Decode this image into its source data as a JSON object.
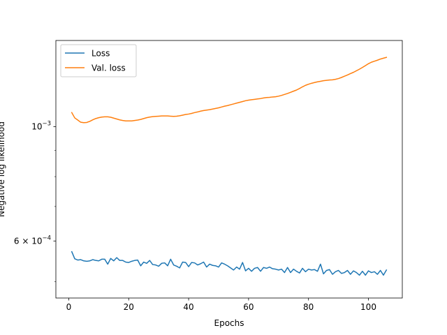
{
  "chart_data": {
    "type": "line",
    "title": "",
    "xlabel": "Epochs",
    "ylabel": "Negative log likelihood",
    "xlim": [
      -4.3,
      111.3
    ],
    "ylim": [
      0.000465,
      0.00147
    ],
    "yscale": "log",
    "grid": false,
    "legend": "top-left",
    "x_ticks": [
      {
        "value": 0,
        "label": "0"
      },
      {
        "value": 20,
        "label": "20"
      },
      {
        "value": 40,
        "label": "40"
      },
      {
        "value": 60,
        "label": "60"
      },
      {
        "value": 80,
        "label": "80"
      },
      {
        "value": 100,
        "label": "100"
      }
    ],
    "y_ticks": [
      {
        "value": 0.001,
        "label": "10−3",
        "base": "10",
        "exp": "−3",
        "coef": ""
      },
      {
        "value": 0.0006,
        "label": "6 × 10−4",
        "base": "10",
        "exp": "−4",
        "coef": "6 × "
      }
    ],
    "y_minor_ticks": [
      0.0005,
      0.0007,
      0.0008,
      0.0009
    ],
    "x_start": 1,
    "x_step": 1,
    "series": [
      {
        "name": "Loss",
        "color": "#1f77b4",
        "values": [
          0.000572,
          0.000554,
          0.000551,
          0.000552,
          0.000549,
          0.000548,
          0.000549,
          0.000552,
          0.00055,
          0.000549,
          0.000553,
          0.000553,
          0.000541,
          0.000555,
          0.000549,
          0.000557,
          0.00055,
          0.00055,
          0.000546,
          0.000545,
          0.000548,
          0.00055,
          0.000551,
          0.000537,
          0.000546,
          0.000543,
          0.00055,
          0.00054,
          0.000539,
          0.000536,
          0.000543,
          0.000544,
          0.000537,
          0.000553,
          0.000539,
          0.000536,
          0.000532,
          0.000546,
          0.000545,
          0.000535,
          0.000545,
          0.000544,
          0.000539,
          0.000542,
          0.000546,
          0.000534,
          0.000541,
          0.000538,
          0.000537,
          0.000534,
          0.000544,
          0.000541,
          0.000537,
          0.000532,
          0.000527,
          0.000534,
          0.000529,
          0.000545,
          0.000525,
          0.000531,
          0.000524,
          0.000531,
          0.000533,
          0.000524,
          0.000533,
          0.000531,
          0.000534,
          0.00053,
          0.000529,
          0.000527,
          0.000529,
          0.000521,
          0.000533,
          0.000521,
          0.000529,
          0.000524,
          0.00052,
          0.000531,
          0.000523,
          0.000529,
          0.000527,
          0.000528,
          0.000524,
          0.000541,
          0.000518,
          0.000526,
          0.000528,
          0.000517,
          0.000523,
          0.000526,
          0.000519,
          0.000521,
          0.000526,
          0.000517,
          0.000525,
          0.000521,
          0.000515,
          0.000524,
          0.000515,
          0.000525,
          0.000521,
          0.000523,
          0.000517,
          0.000526,
          0.000515,
          0.000527
        ]
      },
      {
        "name": "Val. loss",
        "color": "#ff7f0e",
        "values": [
          0.001065,
          0.00104,
          0.00103,
          0.00102,
          0.001018,
          0.001019,
          0.001024,
          0.001031,
          0.001037,
          0.001041,
          0.001044,
          0.001045,
          0.001045,
          0.001043,
          0.001039,
          0.001035,
          0.001031,
          0.001028,
          0.001026,
          0.001026,
          0.001026,
          0.001028,
          0.00103,
          0.001033,
          0.001037,
          0.001041,
          0.001044,
          0.001046,
          0.001047,
          0.001048,
          0.001049,
          0.001049,
          0.001049,
          0.001048,
          0.001047,
          0.001048,
          0.00105,
          0.001053,
          0.001056,
          0.001058,
          0.001061,
          0.001065,
          0.001068,
          0.001072,
          0.001075,
          0.001077,
          0.001079,
          0.001082,
          0.001085,
          0.001088,
          0.001092,
          0.001096,
          0.001099,
          0.001103,
          0.001107,
          0.001111,
          0.001115,
          0.001119,
          0.001123,
          0.001126,
          0.001128,
          0.00113,
          0.001132,
          0.001134,
          0.001137,
          0.001139,
          0.00114,
          0.001142,
          0.001143,
          0.001146,
          0.00115,
          0.001155,
          0.00116,
          0.001166,
          0.001172,
          0.001178,
          0.001186,
          0.001195,
          0.001203,
          0.001209,
          0.001214,
          0.001218,
          0.001222,
          0.001225,
          0.001228,
          0.00123,
          0.001232,
          0.001233,
          0.001236,
          0.00124,
          0.001246,
          0.001253,
          0.00126,
          0.001268,
          0.001275,
          0.001284,
          0.001293,
          0.001303,
          0.001314,
          0.001325,
          0.001334,
          0.00134,
          0.001346,
          0.001353,
          0.001358,
          0.001363
        ]
      }
    ]
  }
}
